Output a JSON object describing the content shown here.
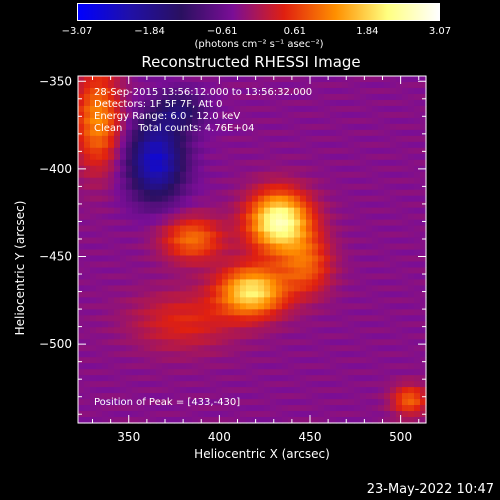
{
  "colorbar": {
    "ticks": [
      "−3.07",
      "−1.84",
      "−0.61",
      "0.61",
      "1.84",
      "3.07"
    ],
    "units": "(photons cm⁻² s⁻¹ asec⁻²)",
    "range": [
      -3.07,
      3.07
    ],
    "colors": [
      "#0000ff",
      "#2010a8",
      "#2a1060",
      "#7a0e96",
      "#e02010",
      "#ff9000",
      "#ffff80",
      "#ffffff"
    ]
  },
  "annotations": {
    "time_range": "28-Sep-2015 13:56:12.000 to 13:56:32.000",
    "detectors": "Detectors: 1F 5F 7F, Att 0",
    "energy_range": "Energy Range: 6.0 - 12.0 keV",
    "clean_counts": "Clean     Total counts: 4.76E+04",
    "peak_position": "Position of Peak = [433,-430]"
  },
  "footer": {
    "timestamp": "23-May-2022 10:47"
  },
  "chart_data": {
    "type": "heatmap",
    "title": "Reconstructed RHESSI Image",
    "xlabel": "Heliocentric X (arcsec)",
    "ylabel": "Heliocentric Y (arcsec)",
    "xlim": [
      322,
      514
    ],
    "ylim": [
      -545,
      -347
    ],
    "xticks": [
      350,
      400,
      450,
      500
    ],
    "yticks": [
      -350,
      -400,
      -450,
      -500
    ],
    "xtick_labels": [
      "350",
      "400",
      "450",
      "500"
    ],
    "ytick_labels": [
      "−350",
      "−400",
      "−450",
      "−500"
    ],
    "zlim": [
      -3.07,
      3.07
    ],
    "peak": [
      433,
      -430
    ],
    "sources": [
      {
        "x": 433,
        "y": -430,
        "sx": 12,
        "sy": 12,
        "amp": 2.9
      },
      {
        "x": 418,
        "y": -470,
        "sx": 13,
        "sy": 10,
        "amp": 2.4
      },
      {
        "x": 385,
        "y": -440,
        "sx": 12,
        "sy": 9,
        "amp": 1.4
      },
      {
        "x": 448,
        "y": -455,
        "sx": 10,
        "sy": 12,
        "amp": 1.2
      },
      {
        "x": 380,
        "y": -487,
        "sx": 20,
        "sy": 12,
        "amp": 0.8
      },
      {
        "x": 333,
        "y": -372,
        "sx": 9,
        "sy": 20,
        "amp": 1.6
      },
      {
        "x": 505,
        "y": -532,
        "sx": 7,
        "sy": 6,
        "amp": 1.3
      },
      {
        "x": 365,
        "y": -395,
        "sx": 11,
        "sy": 16,
        "amp": -2.2
      },
      {
        "x": 378,
        "y": -367,
        "sx": 10,
        "sy": 8,
        "amp": -1.1
      }
    ],
    "baseline": -0.35
  }
}
